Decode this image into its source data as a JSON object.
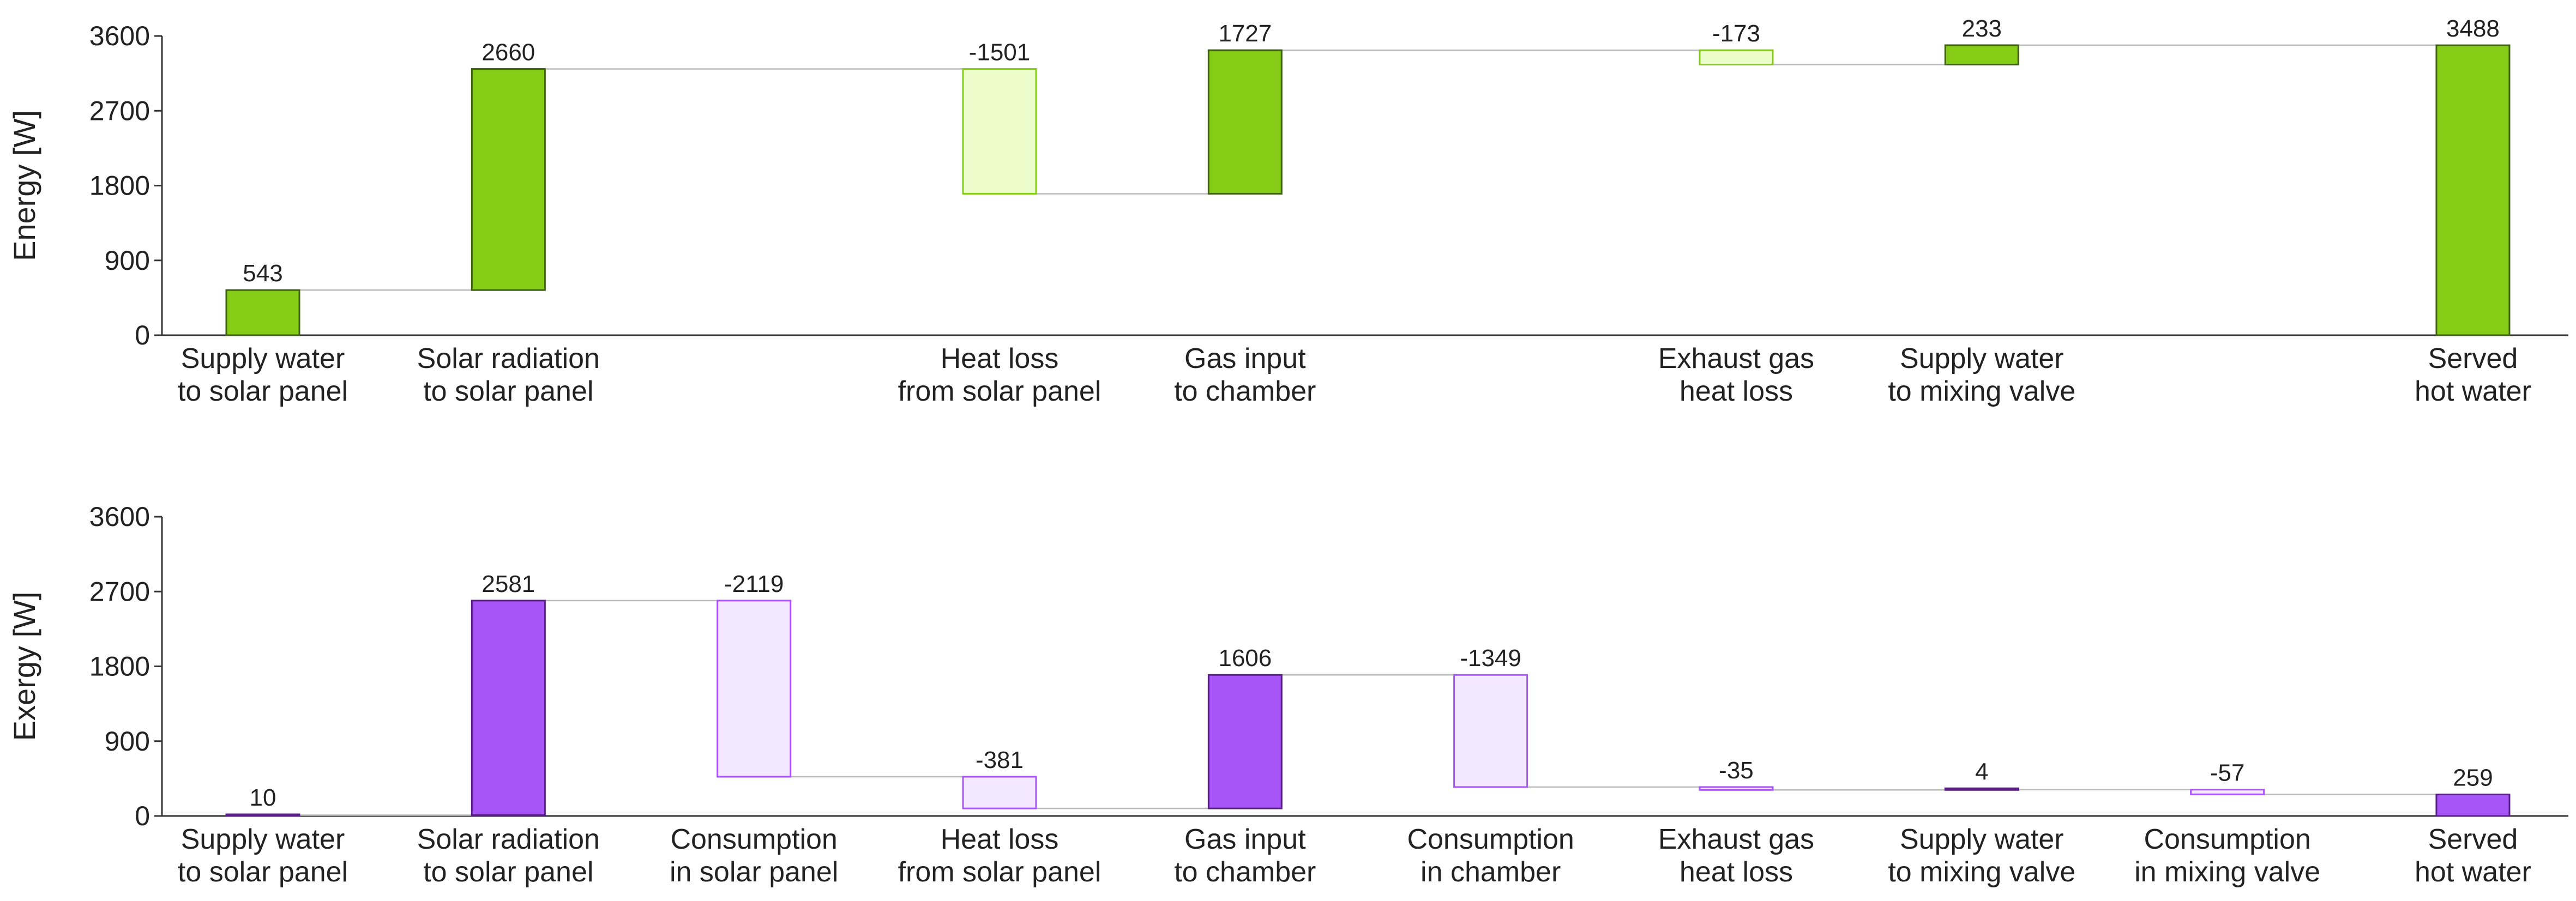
{
  "chart_data": [
    {
      "type": "waterfall",
      "ylabel": "Energy [W]",
      "ylim": [
        0,
        3600
      ],
      "yticks": [
        "0",
        "900",
        "1800",
        "2700",
        "3600"
      ],
      "grid": false,
      "legend": "none",
      "colors": {
        "positive_fill": "#84cc16",
        "positive_stroke": "#3f6212",
        "negative_fill": "#ecfccb",
        "negative_stroke": "#84cc16",
        "connector": "#bbbbbb"
      },
      "categories": [
        [
          "Supply water",
          "to solar panel"
        ],
        [
          "Solar radiation",
          "to solar panel"
        ],
        null,
        [
          "Heat loss",
          "from solar panel"
        ],
        [
          "Gas input",
          "to chamber"
        ],
        null,
        [
          "Exhaust gas",
          "heat loss"
        ],
        [
          "Supply water",
          "to mixing valve"
        ],
        null,
        [
          "Served",
          "hot water"
        ]
      ],
      "values": [
        543,
        2660,
        null,
        -1501,
        1727,
        null,
        -173,
        233,
        null,
        3488
      ],
      "value_labels": [
        "543",
        "2660",
        null,
        "-1501",
        "1727",
        null,
        "-173",
        "233",
        null,
        "3488"
      ],
      "total_index": 9
    },
    {
      "type": "waterfall",
      "ylabel": "Exergy [W]",
      "ylim": [
        0,
        3600
      ],
      "yticks": [
        "0",
        "900",
        "1800",
        "2700",
        "3600"
      ],
      "grid": false,
      "legend": "none",
      "colors": {
        "positive_fill": "#a855f7",
        "positive_stroke": "#581c87",
        "negative_fill": "#f3e8ff",
        "negative_stroke": "#a855f7",
        "connector": "#bbbbbb"
      },
      "categories": [
        [
          "Supply water",
          "to solar panel"
        ],
        [
          "Solar radiation",
          "to solar panel"
        ],
        [
          "Consumption",
          "in solar panel"
        ],
        [
          "Heat loss",
          "from solar panel"
        ],
        [
          "Gas input",
          "to chamber"
        ],
        [
          "Consumption",
          "in chamber"
        ],
        [
          "Exhaust gas",
          "heat loss"
        ],
        [
          "Supply water",
          "to mixing valve"
        ],
        [
          "Consumption",
          "in mixing valve"
        ],
        [
          "Served",
          "hot water"
        ]
      ],
      "values": [
        10,
        2581,
        -2119,
        -381,
        1606,
        -1349,
        -35,
        4,
        -57,
        259
      ],
      "value_labels": [
        "10",
        "2581",
        "-2119",
        "-381",
        "1606",
        "-1349",
        "-35",
        "4",
        "-57",
        "259"
      ],
      "total_index": 9
    }
  ]
}
